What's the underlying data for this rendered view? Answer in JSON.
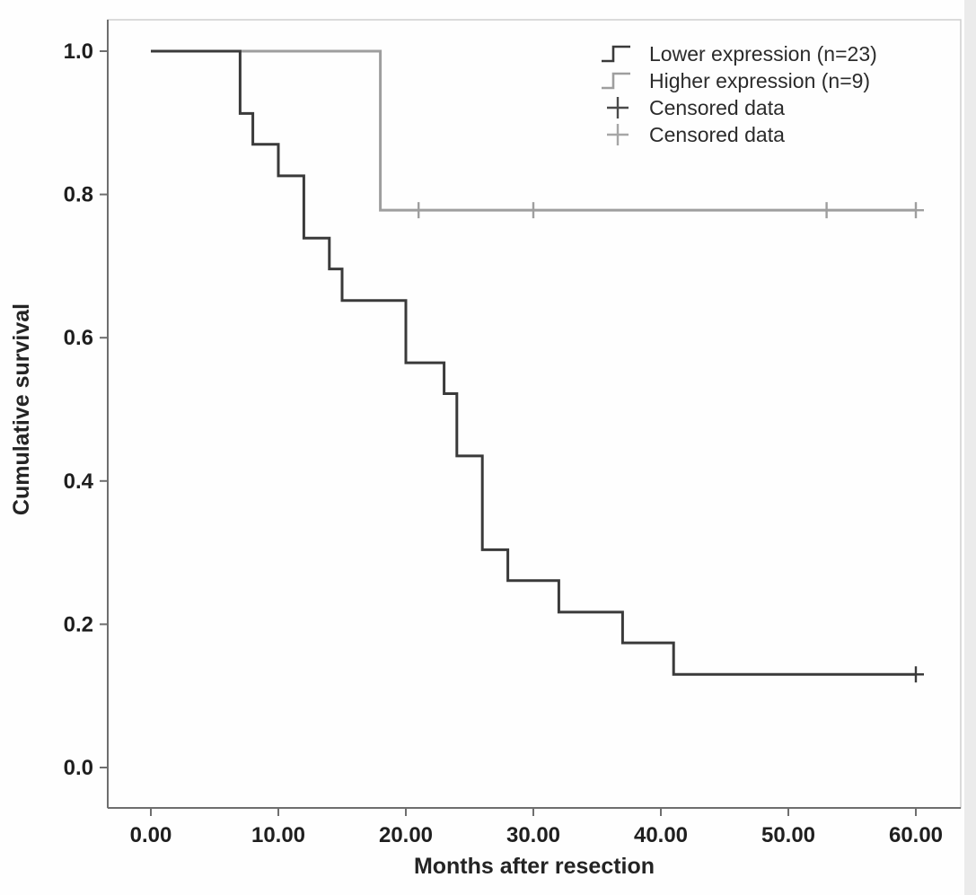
{
  "figure": {
    "background": "#fefefe",
    "frame_color": "#cfcfcf",
    "axis_color": "#6e6e6e",
    "text_color": "#1f1f1f"
  },
  "chart_data": {
    "type": "line",
    "subtype": "kaplan-meier-step",
    "title": "",
    "xlabel": "Months after resection",
    "ylabel": "Cumulative survival",
    "xlim": [
      0,
      60
    ],
    "ylim": [
      0,
      1
    ],
    "grid": false,
    "xticks": [
      0,
      10,
      20,
      30,
      40,
      50,
      60
    ],
    "xtick_labels": [
      "0.00",
      "10.00",
      "20.00",
      "30.00",
      "40.00",
      "50.00",
      "60.00"
    ],
    "yticks": [
      0,
      0.2,
      0.4,
      0.6,
      0.8,
      1.0
    ],
    "ytick_labels": [
      "0.0",
      "0.2",
      "0.4",
      "0.6",
      "0.8",
      "1.0"
    ],
    "legend": {
      "position": "top-right",
      "items": [
        {
          "label": "Lower expression (n=23)",
          "symbol": "step-line",
          "color": "#3a3a3a"
        },
        {
          "label": "Higher expression (n=9)",
          "symbol": "step-line",
          "color": "#9e9e9e"
        },
        {
          "label": "Censored data",
          "symbol": "plus",
          "color": "#4a4a4a"
        },
        {
          "label": "Censored data",
          "symbol": "plus",
          "color": "#a6a6a6"
        }
      ]
    },
    "series": [
      {
        "name": "Higher expression (n=9)",
        "n": 9,
        "color": "#9e9e9e",
        "start": [
          0,
          1.0
        ],
        "steps": [
          [
            18,
            0.778
          ]
        ],
        "end_x": 60,
        "censored": [
          [
            21,
            0.778
          ],
          [
            30,
            0.778
          ],
          [
            53,
            0.778
          ],
          [
            60,
            0.778
          ]
        ]
      },
      {
        "name": "Lower expression (n=23)",
        "n": 23,
        "color": "#3a3a3a",
        "start": [
          0,
          1.0
        ],
        "steps": [
          [
            7,
            0.913
          ],
          [
            8,
            0.87
          ],
          [
            10,
            0.826
          ],
          [
            12,
            0.739
          ],
          [
            14,
            0.696
          ],
          [
            15,
            0.652
          ],
          [
            20,
            0.565
          ],
          [
            23,
            0.522
          ],
          [
            24,
            0.435
          ],
          [
            26,
            0.304
          ],
          [
            28,
            0.261
          ],
          [
            32,
            0.217
          ],
          [
            37,
            0.174
          ],
          [
            41,
            0.13
          ]
        ],
        "end_x": 60,
        "censored": [
          [
            60,
            0.13
          ]
        ]
      }
    ]
  }
}
